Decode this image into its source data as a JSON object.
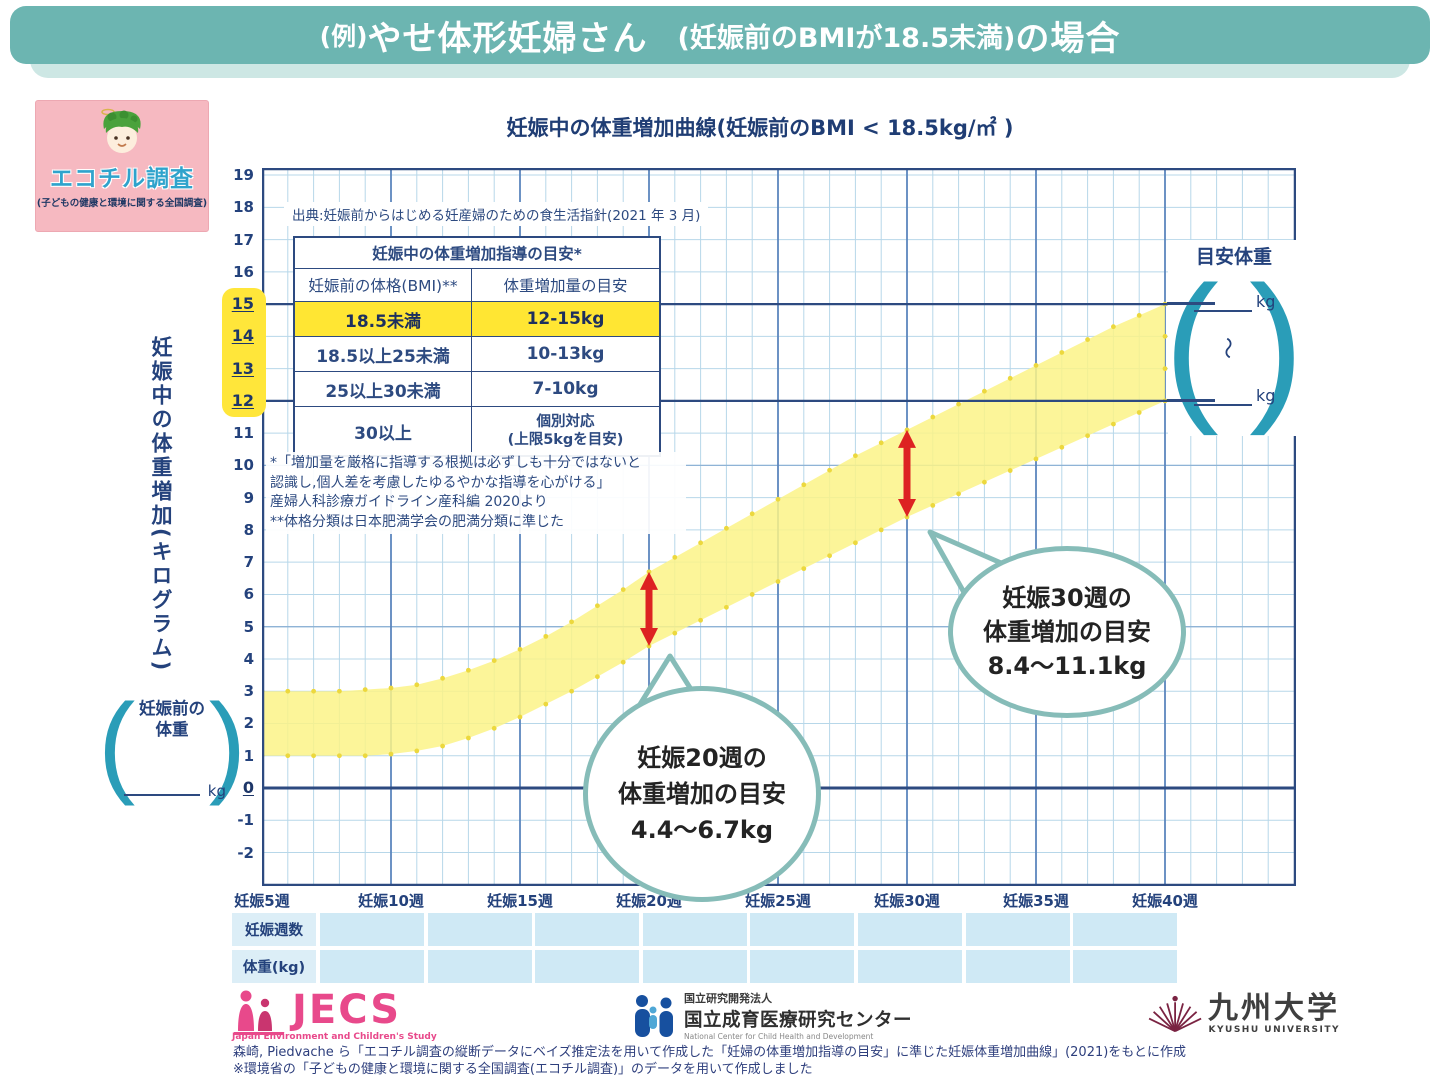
{
  "header": {
    "prefix": "(例)",
    "main": "やせ体形妊婦さん",
    "paren": "(妊娠前のBMIが18.5未満)",
    "suffix": "の場合"
  },
  "logo_box": {
    "name": "エコチル調査",
    "subtitle": "(子どもの健康と環境に関する全国調査)"
  },
  "source_note": "出典:妊娠前からはじめる妊産婦のための食生活指針(2021 年 3 月)",
  "guide_table": {
    "title": "妊娠中の体重増加指導の目安*",
    "col1": "妊娠前の体格(BMI)**",
    "col2": "体重増加量の目安",
    "rows": [
      {
        "bmi": "18.5未満",
        "gain": "12-15kg"
      },
      {
        "bmi": "18.5以上25未満",
        "gain": "10-13kg"
      },
      {
        "bmi": "25以上30未満",
        "gain": "7-10kg"
      },
      {
        "bmi": "30以上",
        "gain1": "個別対応",
        "gain2": "(上限5kgを目安)"
      }
    ]
  },
  "footnotes": [
    "*「増加量を厳格に指導する根拠は必ずしも十分ではないと",
    " 認識し,個人差を考慮したゆるやかな指導を心がける」",
    " 産婦人科診療ガイドライン産科編 2020より",
    "**体格分類は日本肥満学会の肥満分類に準じた"
  ],
  "pre_pregnancy": {
    "line1": "妊娠前の",
    "line2": "体重",
    "unit": "kg"
  },
  "target_weight": {
    "title": "目安体重",
    "unit": "kg",
    "tilde": "〜"
  },
  "glyphs": {
    "paren_left": "(",
    "paren_right": ")"
  },
  "bottom_table": {
    "row1_label": "妊娠週数",
    "row2_label": "体重(kg)",
    "columns": 8
  },
  "footer": {
    "jecs": {
      "name": "JECS",
      "sub": "Japan Environment and Children's Study"
    },
    "ncchd": {
      "org": "国立研究開発法人",
      "name": "国立成育医療研究センター",
      "en": "National Center for Child Health and Development"
    },
    "kyushu": {
      "name": "九州大学",
      "en": "KYUSHU UNIVERSITY"
    },
    "citation1": "森崎, Piedvache ら「エコチル調査の縦断データにベイズ推定法を用いて作成した「妊婦の体重増加指導の目安」に準じた妊娠体重増加曲線」(2021)をもとに作成",
    "citation2": "※環境省の「子どもの健康と環境に関する全国調査(エコチル調査)」のデータを用いて作成しました"
  },
  "chart_data": {
    "type": "area",
    "title": "妊娠中の体重増加曲線(妊娠前のBMI < 18.5kg/㎡ )",
    "ylabel": "妊娠中の体重増加(キログラム)",
    "x_weeks": [
      5,
      6,
      7,
      8,
      9,
      10,
      11,
      12,
      13,
      14,
      15,
      16,
      17,
      18,
      19,
      20,
      21,
      22,
      23,
      24,
      25,
      26,
      27,
      28,
      29,
      30,
      31,
      32,
      33,
      34,
      35,
      36,
      37,
      38,
      39,
      40
    ],
    "series": [
      {
        "name": "目安上限",
        "values": [
          3.0,
          3.0,
          3.0,
          3.0,
          3.05,
          3.1,
          3.2,
          3.4,
          3.65,
          3.95,
          4.3,
          4.7,
          5.15,
          5.65,
          6.15,
          6.7,
          7.15,
          7.6,
          8.05,
          8.5,
          8.95,
          9.4,
          9.85,
          10.3,
          10.7,
          11.1,
          11.5,
          11.9,
          12.3,
          12.7,
          13.1,
          13.5,
          13.9,
          14.3,
          14.65,
          15.0
        ]
      },
      {
        "name": "目安下限",
        "values": [
          1.0,
          1.0,
          1.0,
          1.0,
          1.0,
          1.05,
          1.15,
          1.3,
          1.55,
          1.85,
          2.2,
          2.6,
          3.0,
          3.45,
          3.9,
          4.4,
          4.8,
          5.2,
          5.6,
          6.0,
          6.4,
          6.8,
          7.2,
          7.6,
          8.0,
          8.4,
          8.76,
          9.12,
          9.48,
          9.84,
          10.2,
          10.56,
          10.92,
          11.28,
          11.64,
          12.0
        ]
      }
    ],
    "x_tick_weeks": [
      5,
      10,
      15,
      20,
      25,
      30,
      35,
      40
    ],
    "x_tick_labels": [
      "妊娠5週",
      "妊娠10週",
      "妊娠15週",
      "妊娠20週",
      "妊娠25週",
      "妊娠30週",
      "妊娠35週",
      "妊娠40週"
    ],
    "y_ticks": [
      19,
      18,
      17,
      16,
      15,
      14,
      13,
      12,
      11,
      10,
      9,
      8,
      7,
      6,
      5,
      4,
      3,
      2,
      1,
      0,
      -1,
      -2
    ],
    "y_emphasized": [
      15,
      14,
      13,
      12,
      0
    ],
    "y_bold_lines": [
      15,
      12
    ],
    "final_range": [
      12,
      15
    ],
    "xlim": [
      5,
      45
    ],
    "ylim": [
      -3,
      19.2
    ],
    "grid": true,
    "annotations": [
      {
        "week": 20,
        "range": [
          4.4,
          6.7
        ],
        "line1": "妊娠20週の",
        "line2": "体重増加の目安",
        "line3": "4.4〜6.7kg"
      },
      {
        "week": 30,
        "range": [
          8.4,
          11.1
        ],
        "line1": "妊娠30週の",
        "line2": "体重増加の目安",
        "line3": "8.4〜11.1kg"
      }
    ],
    "colors": {
      "band": "#fbf387",
      "band_marker": "#ecd83e",
      "grid_minor": "#b7d7e9",
      "grid_mid": "#8fb3d6",
      "grid_major": "#5c86be",
      "axis": "#2d4a80",
      "arrow": "#dd2222",
      "highlight": "#ffe63a",
      "header_teal": "#6cb5b1",
      "bubble_teal": "#86bcb8"
    }
  }
}
